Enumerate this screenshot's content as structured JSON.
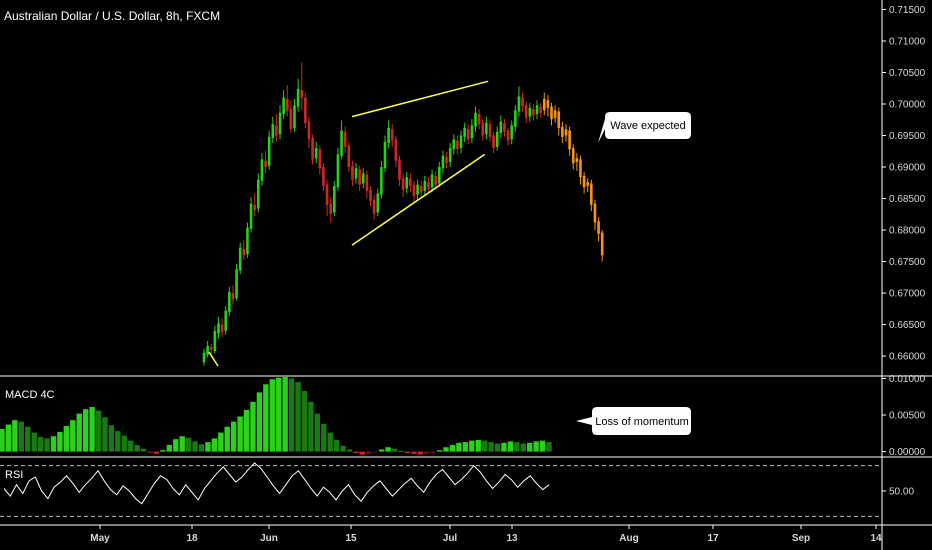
{
  "chart_data": {
    "type": "candlestick",
    "title": "Australian Dollar / U.S. Dollar, 8h, FXCM",
    "x_ticks": [
      "May",
      "18",
      "Jun",
      "15",
      "Jul",
      "13",
      "Aug",
      "17",
      "Sep",
      "14"
    ],
    "price_axis": {
      "ticks": [
        "0.71500",
        "0.71000",
        "0.70500",
        "0.70000",
        "0.69500",
        "0.69000",
        "0.68500",
        "0.68000",
        "0.67500",
        "0.67000",
        "0.66500",
        "0.66000"
      ],
      "ylim": [
        0.657,
        0.7165
      ]
    },
    "colors": {
      "up": "#26d11a",
      "down": "#d12626",
      "projection": "#f7931a",
      "channel": "#ffff4d",
      "grid": "#ffffff"
    },
    "candles": [
      [
        0.659,
        0.6605,
        0.6585,
        0.6612
      ],
      [
        0.6602,
        0.6616,
        0.6598,
        0.6624
      ],
      [
        0.6614,
        0.661,
        0.6598,
        0.662
      ],
      [
        0.6608,
        0.664,
        0.6604,
        0.6648
      ],
      [
        0.6636,
        0.6652,
        0.6628,
        0.6662
      ],
      [
        0.665,
        0.6638,
        0.663,
        0.666
      ],
      [
        0.664,
        0.6672,
        0.6634,
        0.668
      ],
      [
        0.667,
        0.6702,
        0.6664,
        0.671
      ],
      [
        0.67,
        0.669,
        0.6682,
        0.6712
      ],
      [
        0.6692,
        0.6738,
        0.6688,
        0.6746
      ],
      [
        0.6736,
        0.6772,
        0.673,
        0.678
      ],
      [
        0.677,
        0.676,
        0.6752,
        0.6784
      ],
      [
        0.6762,
        0.6804,
        0.6756,
        0.6812
      ],
      [
        0.6802,
        0.6842,
        0.6796,
        0.6852
      ],
      [
        0.684,
        0.6832,
        0.6822,
        0.6858
      ],
      [
        0.6834,
        0.688,
        0.6828,
        0.689
      ],
      [
        0.6878,
        0.6912,
        0.687,
        0.6922
      ],
      [
        0.691,
        0.69,
        0.689,
        0.6926
      ],
      [
        0.6902,
        0.6948,
        0.6896,
        0.6958
      ],
      [
        0.6946,
        0.6968,
        0.6938,
        0.698
      ],
      [
        0.6966,
        0.695,
        0.694,
        0.6984
      ],
      [
        0.6952,
        0.6986,
        0.6944,
        0.6998
      ],
      [
        0.6984,
        0.701,
        0.6976,
        0.7022
      ],
      [
        0.7008,
        0.699,
        0.698,
        0.703
      ],
      [
        0.6992,
        0.696,
        0.6954,
        0.7006
      ],
      [
        0.6962,
        0.6998,
        0.6956,
        0.7008
      ],
      [
        0.6996,
        0.7024,
        0.6988,
        0.704
      ],
      [
        0.7022,
        0.701,
        0.699,
        0.7066
      ],
      [
        0.701,
        0.697,
        0.6962,
        0.7018
      ],
      [
        0.6972,
        0.6944,
        0.693,
        0.698
      ],
      [
        0.6946,
        0.6912,
        0.6904,
        0.6952
      ],
      [
        0.6914,
        0.693,
        0.6906,
        0.694
      ],
      [
        0.6928,
        0.6898,
        0.6888,
        0.6934
      ],
      [
        0.69,
        0.687,
        0.6862,
        0.6906
      ],
      [
        0.6872,
        0.684,
        0.6822,
        0.688
      ],
      [
        0.6842,
        0.6826,
        0.6812,
        0.6852
      ],
      [
        0.6828,
        0.687,
        0.6822,
        0.6878
      ],
      [
        0.6868,
        0.692,
        0.6862,
        0.693
      ],
      [
        0.6918,
        0.6958,
        0.6912,
        0.6974
      ],
      [
        0.6956,
        0.6932,
        0.6922,
        0.6964
      ],
      [
        0.6934,
        0.69,
        0.6892,
        0.694
      ],
      [
        0.6902,
        0.688,
        0.687,
        0.691
      ],
      [
        0.6882,
        0.6898,
        0.6874,
        0.6906
      ],
      [
        0.6896,
        0.6872,
        0.6862,
        0.6902
      ],
      [
        0.6874,
        0.689,
        0.6866,
        0.6898
      ],
      [
        0.6888,
        0.6862,
        0.685,
        0.6894
      ],
      [
        0.6864,
        0.6846,
        0.6838,
        0.687
      ],
      [
        0.6848,
        0.6826,
        0.6816,
        0.6856
      ],
      [
        0.6828,
        0.6858,
        0.6822,
        0.6866
      ],
      [
        0.6856,
        0.69,
        0.685,
        0.691
      ],
      [
        0.6898,
        0.694,
        0.6892,
        0.695
      ],
      [
        0.6938,
        0.6962,
        0.693,
        0.6974
      ],
      [
        0.696,
        0.6942,
        0.6932,
        0.6968
      ],
      [
        0.6944,
        0.691,
        0.69,
        0.695
      ],
      [
        0.6912,
        0.688,
        0.687,
        0.6918
      ],
      [
        0.6882,
        0.6864,
        0.6852,
        0.689
      ],
      [
        0.6866,
        0.6884,
        0.6858,
        0.6892
      ],
      [
        0.6882,
        0.687,
        0.686,
        0.689
      ],
      [
        0.6872,
        0.6854,
        0.6844,
        0.6878
      ],
      [
        0.6856,
        0.6872,
        0.6848,
        0.688
      ],
      [
        0.687,
        0.686,
        0.6852,
        0.6878
      ],
      [
        0.6862,
        0.6878,
        0.6854,
        0.6886
      ],
      [
        0.6876,
        0.6866,
        0.6858,
        0.6884
      ],
      [
        0.6868,
        0.6888,
        0.686,
        0.6896
      ],
      [
        0.6886,
        0.6872,
        0.6864,
        0.6894
      ],
      [
        0.6874,
        0.69,
        0.6868,
        0.6908
      ],
      [
        0.6898,
        0.6918,
        0.689,
        0.6926
      ],
      [
        0.6916,
        0.6906,
        0.6898,
        0.6924
      ],
      [
        0.6908,
        0.693,
        0.69,
        0.6938
      ],
      [
        0.6928,
        0.6944,
        0.692,
        0.6952
      ],
      [
        0.6942,
        0.6928,
        0.692,
        0.695
      ],
      [
        0.693,
        0.695,
        0.6922,
        0.6958
      ],
      [
        0.6948,
        0.6962,
        0.694,
        0.697
      ],
      [
        0.696,
        0.6944,
        0.6936,
        0.6968
      ],
      [
        0.6946,
        0.6966,
        0.6938,
        0.6976
      ],
      [
        0.6964,
        0.6986,
        0.6956,
        0.6996
      ],
      [
        0.6984,
        0.6968,
        0.696,
        0.6992
      ],
      [
        0.697,
        0.695,
        0.6942,
        0.6976
      ],
      [
        0.6952,
        0.697,
        0.6944,
        0.698
      ],
      [
        0.6968,
        0.6948,
        0.694,
        0.6974
      ],
      [
        0.695,
        0.693,
        0.6922,
        0.6956
      ],
      [
        0.6932,
        0.6956,
        0.6926,
        0.6964
      ],
      [
        0.6954,
        0.6972,
        0.6946,
        0.6982
      ],
      [
        0.697,
        0.6956,
        0.6948,
        0.6976
      ],
      [
        0.6958,
        0.6942,
        0.6934,
        0.6962
      ],
      [
        0.6944,
        0.6966,
        0.6936,
        0.6974
      ],
      [
        0.6964,
        0.699,
        0.6956,
        0.6998
      ],
      [
        0.6988,
        0.7012,
        0.698,
        0.7028
      ],
      [
        0.701,
        0.6996,
        0.6988,
        0.7018
      ],
      [
        0.6998,
        0.6978,
        0.697,
        0.7004
      ],
      [
        0.698,
        0.6994,
        0.6972,
        0.7002
      ],
      [
        0.6992,
        0.6982,
        0.6974,
        0.7
      ],
      [
        0.6984,
        0.6998,
        0.6976,
        0.7006
      ],
      [
        0.6996,
        0.6986,
        0.6978,
        0.7002
      ]
    ],
    "projection": [
      [
        0.699,
        0.7008,
        0.6982,
        0.7018
      ],
      [
        0.7006,
        0.6994,
        0.698,
        0.7014
      ],
      [
        0.6996,
        0.6976,
        0.6966,
        0.7002
      ],
      [
        0.6978,
        0.699,
        0.697,
        0.6998
      ],
      [
        0.6988,
        0.6962,
        0.695,
        0.6994
      ],
      [
        0.6964,
        0.6948,
        0.6938,
        0.6972
      ],
      [
        0.695,
        0.696,
        0.694,
        0.6968
      ],
      [
        0.6958,
        0.6928,
        0.6918,
        0.6964
      ],
      [
        0.693,
        0.6906,
        0.6896,
        0.6936
      ],
      [
        0.6908,
        0.6914,
        0.6894,
        0.6922
      ],
      [
        0.6912,
        0.6884,
        0.6872,
        0.6918
      ],
      [
        0.6886,
        0.6868,
        0.6858,
        0.6892
      ],
      [
        0.687,
        0.6876,
        0.686,
        0.6882
      ],
      [
        0.6874,
        0.684,
        0.683,
        0.688
      ],
      [
        0.6842,
        0.6812,
        0.68,
        0.6848
      ],
      [
        0.6814,
        0.6794,
        0.6782,
        0.682
      ],
      [
        0.6796,
        0.676,
        0.675,
        0.68
      ]
    ],
    "channel": {
      "upper": [
        [
          0,
          0.698
        ],
        [
          0.4,
          0.7036
        ]
      ],
      "lower": [
        [
          0,
          0.6776
        ],
        [
          0.39,
          0.692
        ]
      ]
    },
    "macd": {
      "title": "MACD 4C",
      "ticks": [
        "0.01000",
        "0.00500",
        "0.00000"
      ],
      "ylim": [
        -0.0006,
        0.0102
      ],
      "values": [
        0.0031,
        0.0037,
        0.0043,
        0.0041,
        0.0034,
        0.0026,
        0.002,
        0.0018,
        0.0021,
        0.0027,
        0.0035,
        0.0043,
        0.0052,
        0.0058,
        0.0061,
        0.0056,
        0.0047,
        0.0036,
        0.0028,
        0.0022,
        0.0015,
        0.0009,
        0.0004,
        -0.0001,
        -0.0003,
        0.0002,
        0.0009,
        0.0017,
        0.0021,
        0.0019,
        0.0014,
        0.001,
        0.0013,
        0.0018,
        0.0026,
        0.0034,
        0.0041,
        0.0048,
        0.0057,
        0.0068,
        0.0081,
        0.0092,
        0.0099,
        0.0101,
        0.0102,
        0.01,
        0.0095,
        0.0083,
        0.0068,
        0.0052,
        0.0038,
        0.0026,
        0.0016,
        0.0008,
        0.0003,
        -0.0002,
        -0.0004,
        -0.0003,
        -0.0001,
        0.0003,
        0.0006,
        0.0004,
        0.0001,
        -0.0002,
        -0.0003,
        -0.0004,
        -0.0003,
        -0.0002,
        0.0002,
        0.0006,
        0.0009,
        0.0012,
        0.0013,
        0.0015,
        0.0016,
        0.0015,
        0.0013,
        0.0011,
        0.0012,
        0.0014,
        0.0013,
        0.0011,
        0.0012,
        0.0014,
        0.0015,
        0.0013
      ]
    },
    "rsi": {
      "title": "RSI",
      "ticks": [
        "50.00"
      ],
      "levels": [
        70,
        30
      ],
      "ylim": [
        24,
        76
      ],
      "values": [
        52,
        46,
        55,
        48,
        58,
        61,
        50,
        44,
        53,
        57,
        62,
        56,
        49,
        55,
        60,
        66,
        58,
        51,
        47,
        54,
        50,
        44,
        40,
        48,
        56,
        62,
        59,
        52,
        47,
        55,
        49,
        43,
        52,
        58,
        64,
        69,
        63,
        57,
        61,
        67,
        72,
        68,
        61,
        54,
        48,
        55,
        62,
        66,
        59,
        52,
        46,
        53,
        49,
        43,
        50,
        55,
        47,
        42,
        49,
        54,
        58,
        52,
        46,
        51,
        56,
        60,
        54,
        49,
        57,
        63,
        67,
        61,
        55,
        59,
        64,
        70,
        65,
        58,
        52,
        57,
        63,
        59,
        53,
        58,
        62,
        56,
        51,
        55
      ]
    },
    "annotations": [
      {
        "text": "Wave expected"
      },
      {
        "text": "Loss of momentum"
      }
    ]
  }
}
